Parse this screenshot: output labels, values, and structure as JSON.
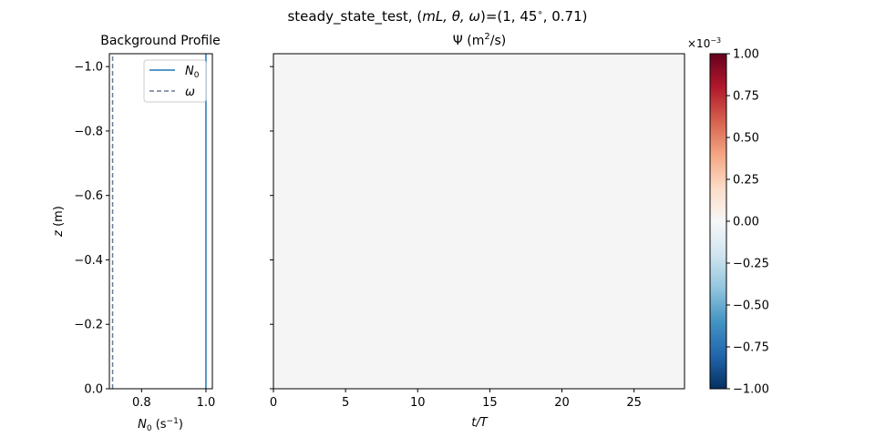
{
  "suptitle": {
    "prefix": "steady_state_test, (",
    "vars": "mL, θ, ω",
    "suffix": ")=(1, 45",
    "deg": "∘",
    "tail": ", 0.71)"
  },
  "chart_data": [
    {
      "type": "line",
      "title": "Background Profile",
      "xlabel": {
        "var": "N",
        "sub": "0",
        "unit_pre": " (s",
        "sup": "−1",
        "unit_post": ")"
      },
      "ylabel": {
        "var": "z",
        "unit": " (m)"
      },
      "xlim": [
        0.7,
        1.02
      ],
      "ylim": [
        0.0,
        -1.04
      ],
      "xticks": [
        0.8,
        1.0
      ],
      "xtick_labels": [
        "0.8",
        "1.0"
      ],
      "yticks": [
        -1.0,
        -0.8,
        -0.6,
        -0.4,
        -0.2,
        0.0
      ],
      "ytick_labels": [
        "−1.0",
        "−0.8",
        "−0.6",
        "−0.4",
        "−0.2",
        "0.0"
      ],
      "series": [
        {
          "name": "N₀",
          "legend_var": "N",
          "legend_sub": "0",
          "style": "solid",
          "color": "#1f77b4",
          "x": [
            1.0,
            1.0
          ],
          "z": [
            0.0,
            -1.04
          ]
        },
        {
          "name": "ω",
          "legend_var": "ω",
          "legend_sub": "",
          "style": "dashed",
          "color": "#6b7b94",
          "x": [
            0.71,
            0.71
          ],
          "z": [
            0.0,
            -1.04
          ]
        }
      ],
      "legend": "top-right"
    },
    {
      "type": "heatmap",
      "title": {
        "pre": "Ψ (m",
        "sup": "2",
        "post": "/s)"
      },
      "xlabel": "t/T",
      "xlim": [
        0,
        28.5
      ],
      "xticks": [
        0,
        5,
        10,
        15,
        20,
        25
      ],
      "xtick_labels": [
        "0",
        "5",
        "10",
        "15",
        "20",
        "25"
      ],
      "yticks": [
        -1.0,
        -0.8,
        -0.6,
        -0.4,
        -0.2,
        0.0
      ],
      "ylim": [
        0.0,
        -1.04
      ],
      "field_value": 0.0,
      "field_color": "#f5f5f5",
      "shared_y": true
    },
    {
      "type": "colorbar",
      "clim": [
        -1.0,
        1.0
      ],
      "scale": {
        "pre": "×10",
        "sup": "−3"
      },
      "ticks": [
        1.0,
        0.75,
        0.5,
        0.25,
        0.0,
        -0.25,
        -0.5,
        -0.75,
        -1.0
      ],
      "tick_labels": [
        "1.00",
        "0.75",
        "0.50",
        "0.25",
        "0.00",
        "−0.25",
        "−0.50",
        "−0.75",
        "−1.00"
      ],
      "colormap": "RdBu_r",
      "colors": [
        "#053061",
        "#2166ac",
        "#4393c3",
        "#92c5de",
        "#d1e5f0",
        "#f7f7f7",
        "#fddbc7",
        "#f4a582",
        "#d6604d",
        "#b2182b",
        "#67001f"
      ]
    }
  ]
}
